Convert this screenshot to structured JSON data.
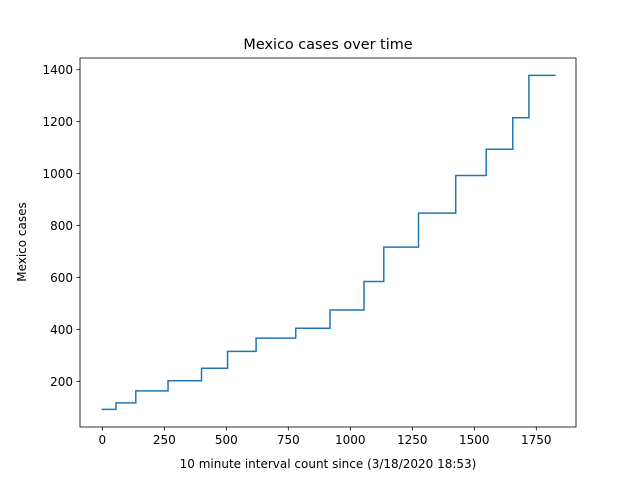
{
  "chart_data": {
    "type": "line",
    "title": "Mexico cases over time",
    "xlabel": "10 minute interval count since (3/18/2020 18:53)",
    "ylabel": "Mexico cases",
    "xlim": [
      -90,
      1910
    ],
    "ylim": [
      25,
      1445
    ],
    "xticks": [
      0,
      250,
      500,
      750,
      1000,
      1250,
      1500,
      1750
    ],
    "yticks": [
      200,
      400,
      600,
      800,
      1000,
      1200,
      1400
    ],
    "grid": false,
    "legend": "none",
    "line_color": "#1f77b4",
    "series": [
      {
        "step": "post",
        "x": [
          0,
          55,
          135,
          265,
          400,
          505,
          620,
          780,
          918,
          1050,
          1055,
          1135,
          1275,
          1425,
          1548,
          1655,
          1720,
          1825
        ],
        "y": [
          93,
          118,
          164,
          203,
          251,
          316,
          367,
          405,
          475,
          475,
          585,
          717,
          848,
          993,
          1094,
          1215,
          1378,
          1378
        ]
      }
    ]
  }
}
